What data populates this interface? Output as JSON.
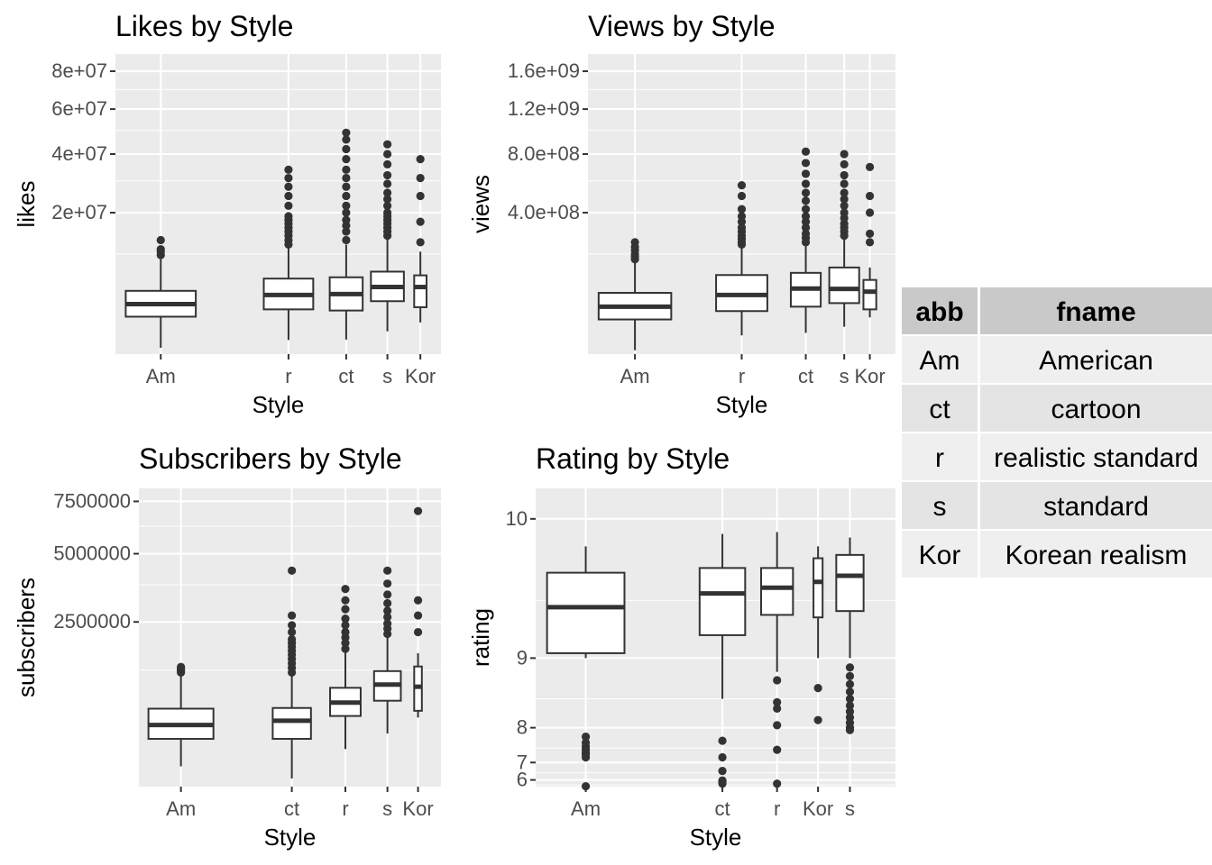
{
  "chart_data": [
    {
      "type": "boxplot",
      "title": "Likes by Style",
      "xlabel": "Style",
      "ylabel": "likes",
      "y_scale": "sqrt",
      "ylim": [
        0,
        90000000
      ],
      "y_ticks": [
        20000000,
        40000000,
        60000000,
        80000000
      ],
      "y_tick_labels": [
        "2e+07",
        "4e+07",
        "6e+07",
        "8e+07"
      ],
      "categories": [
        "Am",
        "r",
        "ct",
        "s",
        "Kor"
      ],
      "boxes": [
        {
          "category": "Am",
          "x": 1.5,
          "width": 1.7,
          "lower": 40000,
          "q1": 1400000,
          "median": 2500000,
          "q3": 4000000,
          "upper": 9000000,
          "outliers": [
            9800000,
            10500000,
            11000000,
            13000000
          ]
        },
        {
          "category": "r",
          "x": 4.6,
          "width": 1.2,
          "lower": 200000,
          "q1": 2000000,
          "median": 3500000,
          "q3": 5700000,
          "upper": 11500000,
          "outliers": [
            12000000,
            13000000,
            14000000,
            15000000,
            16000000,
            17000000,
            18000000,
            19000000,
            22000000,
            25000000,
            28000000,
            31000000,
            34000000
          ]
        },
        {
          "category": "ct",
          "x": 6.0,
          "width": 0.8,
          "lower": 210000,
          "q1": 1900000,
          "median": 3600000,
          "q3": 5900000,
          "upper": 12000000,
          "outliers": [
            13000000,
            15000000,
            16500000,
            18000000,
            20000000,
            22000000,
            25000000,
            28000000,
            31000000,
            34000000,
            38000000,
            42000000,
            46000000,
            49000000
          ]
        },
        {
          "category": "s",
          "x": 7.0,
          "width": 0.8,
          "lower": 520000,
          "q1": 2800000,
          "median": 4500000,
          "q3": 6800000,
          "upper": 14000000,
          "outliers": [
            14000000,
            15000000,
            16000000,
            17000000,
            18000000,
            19000000,
            20000000,
            22000000,
            24000000,
            26000000,
            29000000,
            32000000,
            36000000,
            40000000,
            44000000
          ]
        },
        {
          "category": "Kor",
          "x": 7.8,
          "width": 0.3,
          "lower": 1000000,
          "q1": 2200000,
          "median": 4500000,
          "q3": 6200000,
          "upper": 10500000,
          "outliers": [
            12500000,
            17500000,
            25000000,
            31000000,
            38000000
          ]
        }
      ]
    },
    {
      "type": "boxplot",
      "title": "Views by Style",
      "xlabel": "Style",
      "ylabel": "views",
      "y_scale": "sqrt",
      "ylim": [
        0,
        1800000000
      ],
      "y_ticks": [
        400000000,
        800000000,
        1200000000,
        1600000000
      ],
      "y_tick_labels": [
        "4.0e+08",
        "8.0e+08",
        "1.2e+09",
        "1.6e+09"
      ],
      "categories": [
        "Am",
        "r",
        "ct",
        "s",
        "Kor"
      ],
      "boxes": [
        {
          "category": "Am",
          "x": 1.5,
          "width": 1.7,
          "lower": 300000,
          "q1": 24000000,
          "median": 45000000,
          "q3": 75000000,
          "upper": 170000000,
          "outliers": [
            180000000,
            190000000,
            200000000,
            215000000,
            230000000,
            250000000
          ]
        },
        {
          "category": "r",
          "x": 4.0,
          "width": 1.2,
          "lower": 7000000,
          "q1": 37000000,
          "median": 70000000,
          "q3": 125000000,
          "upper": 230000000,
          "outliers": [
            240000000,
            250000000,
            265000000,
            280000000,
            300000000,
            320000000,
            350000000,
            380000000,
            420000000,
            500000000,
            570000000
          ]
        },
        {
          "category": "ct",
          "x": 5.5,
          "width": 0.7,
          "lower": 9000000,
          "q1": 45000000,
          "median": 86000000,
          "q3": 132000000,
          "upper": 240000000,
          "outliers": [
            250000000,
            270000000,
            290000000,
            320000000,
            350000000,
            380000000,
            420000000,
            470000000,
            520000000,
            580000000,
            650000000,
            730000000,
            820000000
          ]
        },
        {
          "category": "s",
          "x": 6.4,
          "width": 0.7,
          "lower": 15000000,
          "q1": 52000000,
          "median": 85000000,
          "q3": 150000000,
          "upper": 270000000,
          "outliers": [
            280000000,
            300000000,
            320000000,
            340000000,
            370000000,
            400000000,
            440000000,
            480000000,
            520000000,
            580000000,
            640000000,
            720000000,
            800000000
          ]
        },
        {
          "category": "Kor",
          "x": 7.0,
          "width": 0.3,
          "lower": 27000000,
          "q1": 40000000,
          "median": 78000000,
          "q3": 110000000,
          "upper": 150000000,
          "outliers": [
            250000000,
            290000000,
            400000000,
            500000000,
            700000000
          ]
        }
      ]
    },
    {
      "type": "boxplot",
      "title": "Subscribers by Style",
      "xlabel": "Style",
      "ylabel": "subscribers",
      "y_scale": "sqrt",
      "ylim": [
        0,
        8200000
      ],
      "y_ticks": [
        2500000,
        5000000,
        7500000
      ],
      "y_tick_labels": [
        "2500000",
        "5000000",
        "7500000"
      ],
      "categories": [
        "Am",
        "ct",
        "r",
        "s",
        "Kor"
      ],
      "boxes": [
        {
          "category": "Am",
          "x": 1.5,
          "width": 1.7,
          "lower": 38000,
          "q1": 210000,
          "median": 350000,
          "q3": 560000,
          "upper": 1180000,
          "outliers": [
            1200000,
            1230000,
            1260000,
            1290000,
            1320000
          ]
        },
        {
          "category": "ct",
          "x": 4.4,
          "width": 1.0,
          "lower": 6000,
          "q1": 210000,
          "median": 400000,
          "q3": 570000,
          "upper": 1150000,
          "outliers": [
            1200000,
            1300000,
            1400000,
            1500000,
            1600000,
            1700000,
            1800000,
            1900000,
            2000000,
            2200000,
            2400000,
            2700000,
            4300000
          ]
        },
        {
          "category": "r",
          "x": 5.8,
          "width": 0.8,
          "lower": 130000,
          "q1": 460000,
          "median": 650000,
          "q3": 900000,
          "upper": 1650000,
          "outliers": [
            1750000,
            1900000,
            2050000,
            2200000,
            2400000,
            2600000,
            2900000,
            3200000,
            3600000
          ]
        },
        {
          "category": "s",
          "x": 6.9,
          "width": 0.7,
          "lower": 260000,
          "q1": 680000,
          "median": 960000,
          "q3": 1230000,
          "upper": 2100000,
          "outliers": [
            2150000,
            2300000,
            2450000,
            2650000,
            2850000,
            3100000,
            3400000,
            3800000,
            4300000
          ]
        },
        {
          "category": "Kor",
          "x": 7.7,
          "width": 0.2,
          "lower": 440000,
          "q1": 530000,
          "median": 920000,
          "q3": 1330000,
          "upper": 1640000,
          "outliers": [
            2200000,
            2700000,
            3200000,
            7000000
          ]
        }
      ]
    },
    {
      "type": "boxplot",
      "title": "Rating by Style",
      "xlabel": "Style",
      "ylabel": "rating",
      "y_scale": "exp",
      "ylim": [
        5.3,
        10.15
      ],
      "y_ticks": [
        6,
        7,
        8,
        9,
        10
      ],
      "y_tick_labels": [
        "6",
        "7",
        "8",
        "9",
        "10"
      ],
      "categories": [
        "Am",
        "ct",
        "r",
        "Kor",
        "s"
      ],
      "boxes": [
        {
          "category": "Am",
          "x": 1.5,
          "width": 1.7,
          "lower": 9.0,
          "q1": 9.05,
          "median": 9.45,
          "q3": 9.69,
          "upper": 9.85,
          "outliers": [
            7.2,
            7.3,
            7.35,
            7.45,
            7.55,
            7.65,
            7.8,
            5.35
          ]
        },
        {
          "category": "ct",
          "x": 4.5,
          "width": 1.0,
          "lower": 8.5,
          "q1": 9.22,
          "median": 9.55,
          "q3": 9.72,
          "upper": 9.92,
          "outliers": [
            7.7,
            7.2,
            6.6,
            5.95,
            5.8,
            5.65
          ]
        },
        {
          "category": "r",
          "x": 5.7,
          "width": 0.7,
          "lower": 8.85,
          "q1": 9.39,
          "median": 9.59,
          "q3": 9.72,
          "upper": 9.93,
          "outliers": [
            8.75,
            8.45,
            8.35,
            8.05,
            7.45,
            5.65
          ]
        },
        {
          "category": "Kor",
          "x": 6.6,
          "width": 0.2,
          "lower": 9.0,
          "q1": 9.37,
          "median": 9.63,
          "q3": 9.78,
          "upper": 9.85,
          "outliers": [
            8.65,
            8.15
          ]
        },
        {
          "category": "s",
          "x": 7.3,
          "width": 0.6,
          "lower": 9.0,
          "q1": 9.42,
          "median": 9.67,
          "q3": 9.8,
          "upper": 9.9,
          "outliers": [
            8.9,
            8.8,
            8.7,
            8.6,
            8.5,
            8.4,
            8.3,
            8.2,
            8.1,
            8.0,
            7.95
          ]
        }
      ]
    }
  ],
  "legend_table": {
    "headers": [
      "abb",
      "fname"
    ],
    "rows": [
      [
        "Am",
        "American"
      ],
      [
        "ct",
        "cartoon"
      ],
      [
        "r",
        "realistic standard"
      ],
      [
        "s",
        "standard"
      ],
      [
        "Kor",
        "Korean realism"
      ]
    ]
  }
}
